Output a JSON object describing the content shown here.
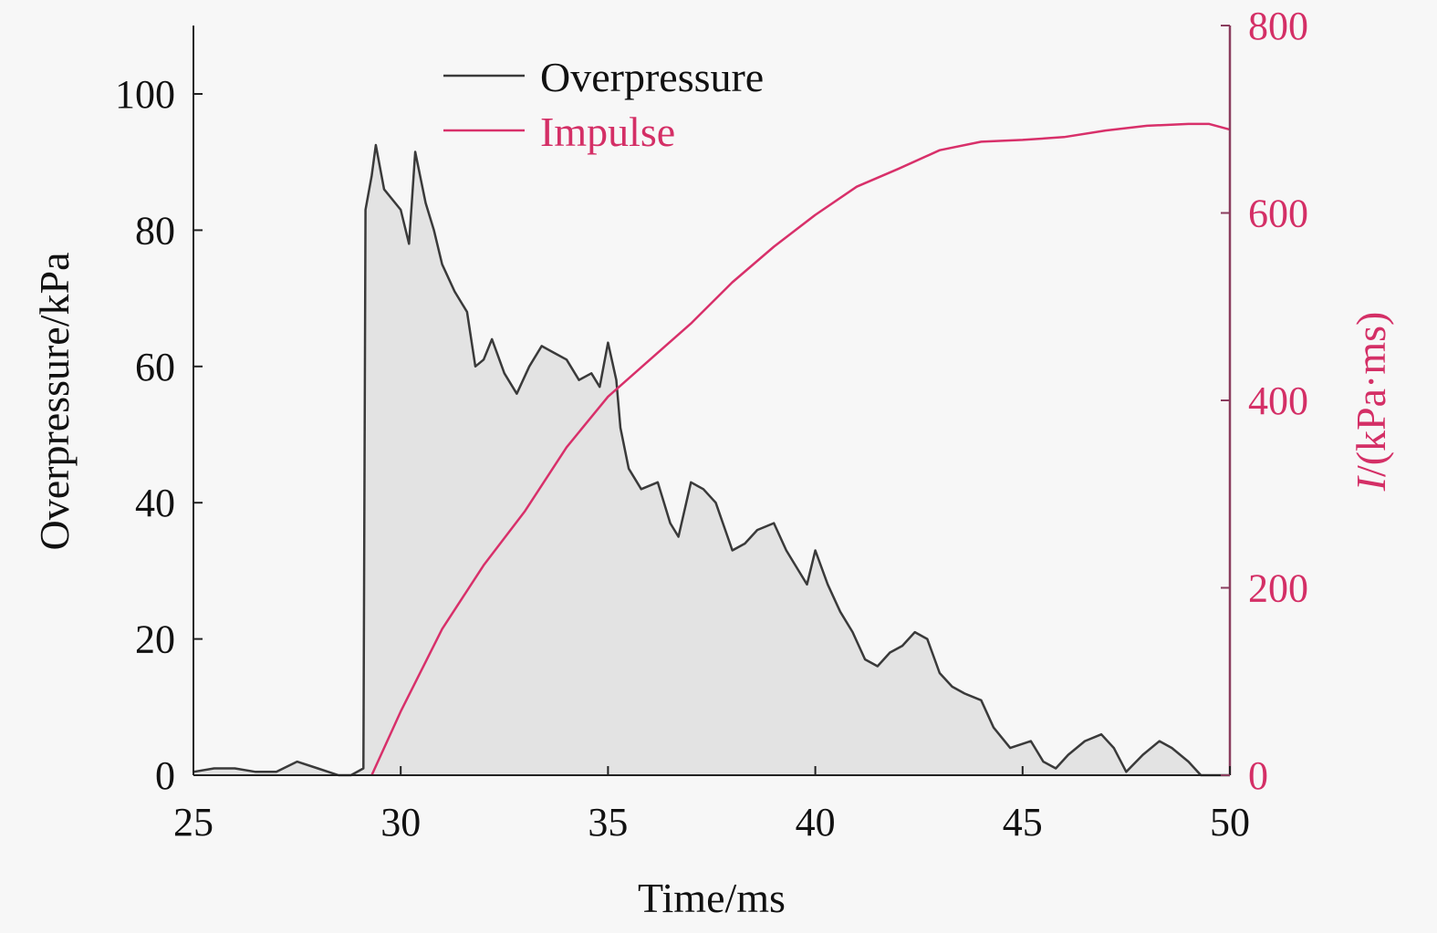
{
  "chart_data": {
    "type": "line",
    "xlabel": "Time/ms",
    "ylabel": "Overpressure/kPa",
    "y2label_italic": "I",
    "y2label_rest": "/(kPa·ms)",
    "xlim": [
      25,
      50
    ],
    "ylim": [
      0,
      110
    ],
    "y2lim": [
      0,
      800
    ],
    "xticks": [
      "25",
      "30",
      "35",
      "40",
      "45",
      "50"
    ],
    "yticks": [
      "0",
      "20",
      "40",
      "60",
      "80",
      "100"
    ],
    "y2ticks": [
      "0",
      "200",
      "400",
      "600",
      "800"
    ],
    "legend_position": "top-center",
    "colors": {
      "overpressure": "#3a3a3a",
      "fill": "#e3e3e3",
      "impulse": "#d8306a",
      "right_axis": "#8a3d5e",
      "background": "#f7f7f7"
    },
    "series": [
      {
        "name": "Overpressure",
        "axis": "left",
        "x": [
          25,
          25.5,
          26,
          26.5,
          27,
          27.5,
          28,
          28.5,
          28.8,
          29.1,
          29.15,
          29.3,
          29.4,
          29.6,
          30,
          30.2,
          30.35,
          30.6,
          30.8,
          31,
          31.3,
          31.6,
          31.8,
          32,
          32.2,
          32.5,
          32.8,
          33.1,
          33.4,
          33.7,
          34,
          34.3,
          34.6,
          34.8,
          35,
          35.2,
          35.3,
          35.5,
          35.8,
          36.2,
          36.5,
          36.7,
          37,
          37.3,
          37.6,
          38,
          38.3,
          38.6,
          39,
          39.3,
          39.6,
          39.8,
          40,
          40.3,
          40.6,
          40.9,
          41.2,
          41.5,
          41.8,
          42.1,
          42.4,
          42.7,
          43,
          43.3,
          43.6,
          44,
          44.3,
          44.7,
          45.2,
          45.5,
          45.8,
          46.1,
          46.5,
          46.9,
          47.2,
          47.5,
          47.9,
          48.3,
          48.6,
          49,
          49.3,
          50
        ],
        "values": [
          0.5,
          1,
          1,
          0.5,
          0.5,
          2,
          1,
          0,
          0,
          1,
          83,
          88,
          92.5,
          86,
          83,
          78,
          91.5,
          84,
          80,
          75,
          71,
          68,
          60,
          61,
          64,
          59,
          56,
          60,
          63,
          62,
          61,
          58,
          59,
          57,
          63.5,
          58,
          51,
          45,
          42,
          43,
          37,
          35,
          43,
          42,
          40,
          33,
          34,
          36,
          37,
          33,
          30,
          28,
          33,
          28,
          24,
          21,
          17,
          16,
          18,
          19,
          21,
          20,
          15,
          13,
          12,
          11,
          7,
          4,
          5,
          2,
          1,
          3,
          5,
          6,
          4,
          0.5,
          3,
          5,
          4,
          2,
          0,
          0
        ]
      },
      {
        "name": "Impulse",
        "axis": "right",
        "x": [
          29.3,
          30,
          31,
          32,
          33,
          34,
          35,
          36,
          37,
          38,
          39,
          40,
          41,
          42,
          43,
          44,
          45,
          46,
          47,
          48,
          49,
          49.5,
          50
        ],
        "values": [
          0,
          68,
          156,
          224,
          282,
          350,
          404,
          443,
          482,
          526,
          564,
          598,
          628,
          647,
          667,
          676,
          678,
          681,
          688,
          693,
          695,
          695,
          689
        ]
      }
    ]
  }
}
